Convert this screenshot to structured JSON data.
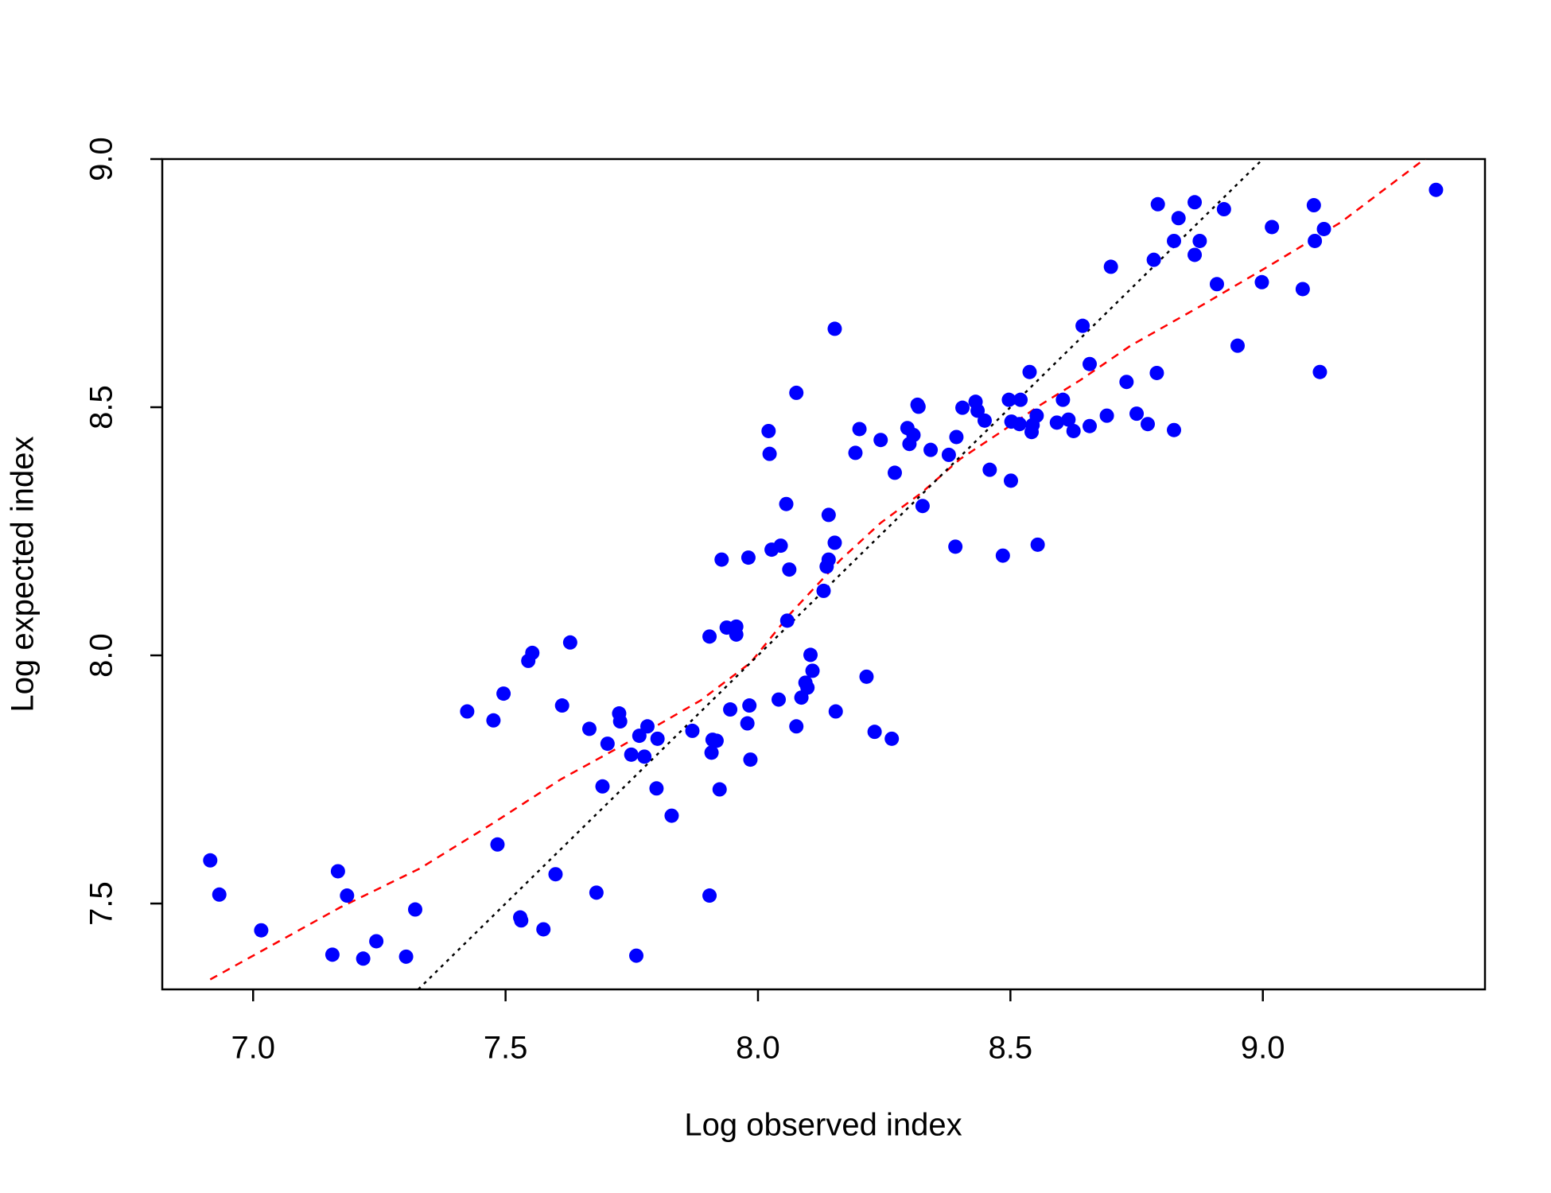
{
  "chart_data": {
    "type": "scatter",
    "xlabel": "Log observed index",
    "ylabel": "Log expected index",
    "xlim": [
      6.82,
      9.44
    ],
    "ylim": [
      7.327,
      9.0
    ],
    "xticks": [
      {
        "value": 7.0,
        "label": "7.0"
      },
      {
        "value": 7.5,
        "label": "7.5"
      },
      {
        "value": 8.0,
        "label": "8.0"
      },
      {
        "value": 8.5,
        "label": "8.5"
      },
      {
        "value": 9.0,
        "label": "9.0"
      }
    ],
    "yticks": [
      {
        "value": 7.5,
        "label": "7.5"
      },
      {
        "value": 8.0,
        "label": "8.0"
      },
      {
        "value": 8.5,
        "label": "8.5"
      },
      {
        "value": 9.0,
        "label": "9.0"
      }
    ],
    "series": [
      {
        "color": "#0000ff",
        "x": [
          6.915,
          6.933,
          7.016,
          7.157,
          7.168,
          7.186,
          7.218,
          7.244,
          7.303,
          7.321,
          7.424,
          7.476,
          7.484,
          7.496,
          7.529,
          7.531,
          7.545,
          7.553,
          7.575,
          7.599,
          7.612,
          7.628,
          7.666,
          7.68,
          7.692,
          7.702,
          7.725,
          7.727,
          7.749,
          7.759,
          7.765,
          7.775,
          7.781,
          7.799,
          7.801,
          7.829,
          7.87,
          7.904,
          7.904,
          7.908,
          7.91,
          7.918,
          7.924,
          7.928,
          7.938,
          7.945,
          7.957,
          7.957,
          7.979,
          7.981,
          7.983,
          7.985,
          8.021,
          8.023,
          8.027,
          8.041,
          8.045,
          8.056,
          8.058,
          8.062,
          8.076,
          8.076,
          8.086,
          8.094,
          8.098,
          8.104,
          8.108,
          8.13,
          8.136,
          8.14,
          8.14,
          8.152,
          8.152,
          8.154,
          8.193,
          8.201,
          8.215,
          8.231,
          8.243,
          8.265,
          8.271,
          8.296,
          8.3,
          8.308,
          8.316,
          8.318,
          8.326,
          8.342,
          8.378,
          8.391,
          8.393,
          8.405,
          8.431,
          8.435,
          8.449,
          8.459,
          8.485,
          8.497,
          8.501,
          8.502,
          8.52,
          8.518,
          8.538,
          8.542,
          8.544,
          8.552,
          8.554,
          8.592,
          8.604,
          8.615,
          8.625,
          8.643,
          8.657,
          8.657,
          8.691,
          8.699,
          8.73,
          8.75,
          8.772,
          8.784,
          8.79,
          8.792,
          8.824,
          8.824,
          8.833,
          8.865,
          8.865,
          8.875,
          8.909,
          8.923,
          8.95,
          8.998,
          9.018,
          9.079,
          9.101,
          9.103,
          9.113,
          9.121,
          9.343
        ],
        "y": [
          7.587,
          7.518,
          7.446,
          7.397,
          7.565,
          7.516,
          7.389,
          7.424,
          7.393,
          7.488,
          7.887,
          7.869,
          7.619,
          7.923,
          7.472,
          7.466,
          7.989,
          8.005,
          7.448,
          7.559,
          7.899,
          8.026,
          7.852,
          7.522,
          7.736,
          7.822,
          7.883,
          7.867,
          7.8,
          7.395,
          7.838,
          7.796,
          7.857,
          7.732,
          7.832,
          7.677,
          7.848,
          8.038,
          7.516,
          7.804,
          7.83,
          7.828,
          7.73,
          8.193,
          8.056,
          7.891,
          8.042,
          8.058,
          7.863,
          8.197,
          7.899,
          7.79,
          8.452,
          8.406,
          8.213,
          7.911,
          8.221,
          8.305,
          8.07,
          8.173,
          8.529,
          7.857,
          7.915,
          7.945,
          7.935,
          8.001,
          7.969,
          8.13,
          8.179,
          8.283,
          8.193,
          8.227,
          8.658,
          7.887,
          8.408,
          8.456,
          7.957,
          7.846,
          8.434,
          7.832,
          8.368,
          8.458,
          8.426,
          8.444,
          8.505,
          8.501,
          8.301,
          8.414,
          8.404,
          8.219,
          8.44,
          8.499,
          8.511,
          8.493,
          8.473,
          8.374,
          8.201,
          8.515,
          8.352,
          8.471,
          8.515,
          8.466,
          8.571,
          8.45,
          8.464,
          8.483,
          8.223,
          8.469,
          8.515,
          8.475,
          8.452,
          8.664,
          8.462,
          8.587,
          8.483,
          8.783,
          8.551,
          8.487,
          8.466,
          8.797,
          8.569,
          8.909,
          8.454,
          8.835,
          8.881,
          8.913,
          8.807,
          8.835,
          8.748,
          8.899,
          8.624,
          8.752,
          8.863,
          8.738,
          8.907,
          8.835,
          8.571,
          8.859,
          8.938
        ]
      }
    ],
    "lines": [
      {
        "color": "#ff0000",
        "style": "dashed",
        "x": [
          6.915,
          7.172,
          7.331,
          7.48,
          7.609,
          7.727,
          7.886,
          7.985,
          8.064,
          8.164,
          8.243,
          8.322,
          8.401,
          8.481,
          8.56,
          8.639,
          8.738,
          8.877,
          9.016,
          9.155,
          9.323
        ],
        "y": [
          7.347,
          7.492,
          7.571,
          7.665,
          7.75,
          7.816,
          7.909,
          7.985,
          8.084,
          8.193,
          8.267,
          8.326,
          8.396,
          8.45,
          8.505,
          8.555,
          8.624,
          8.704,
          8.787,
          8.873,
          9.002
        ]
      },
      {
        "color": "#000000",
        "style": "dotted",
        "x": [
          7.327,
          9.0
        ],
        "y": [
          7.327,
          9.0
        ]
      }
    ]
  }
}
